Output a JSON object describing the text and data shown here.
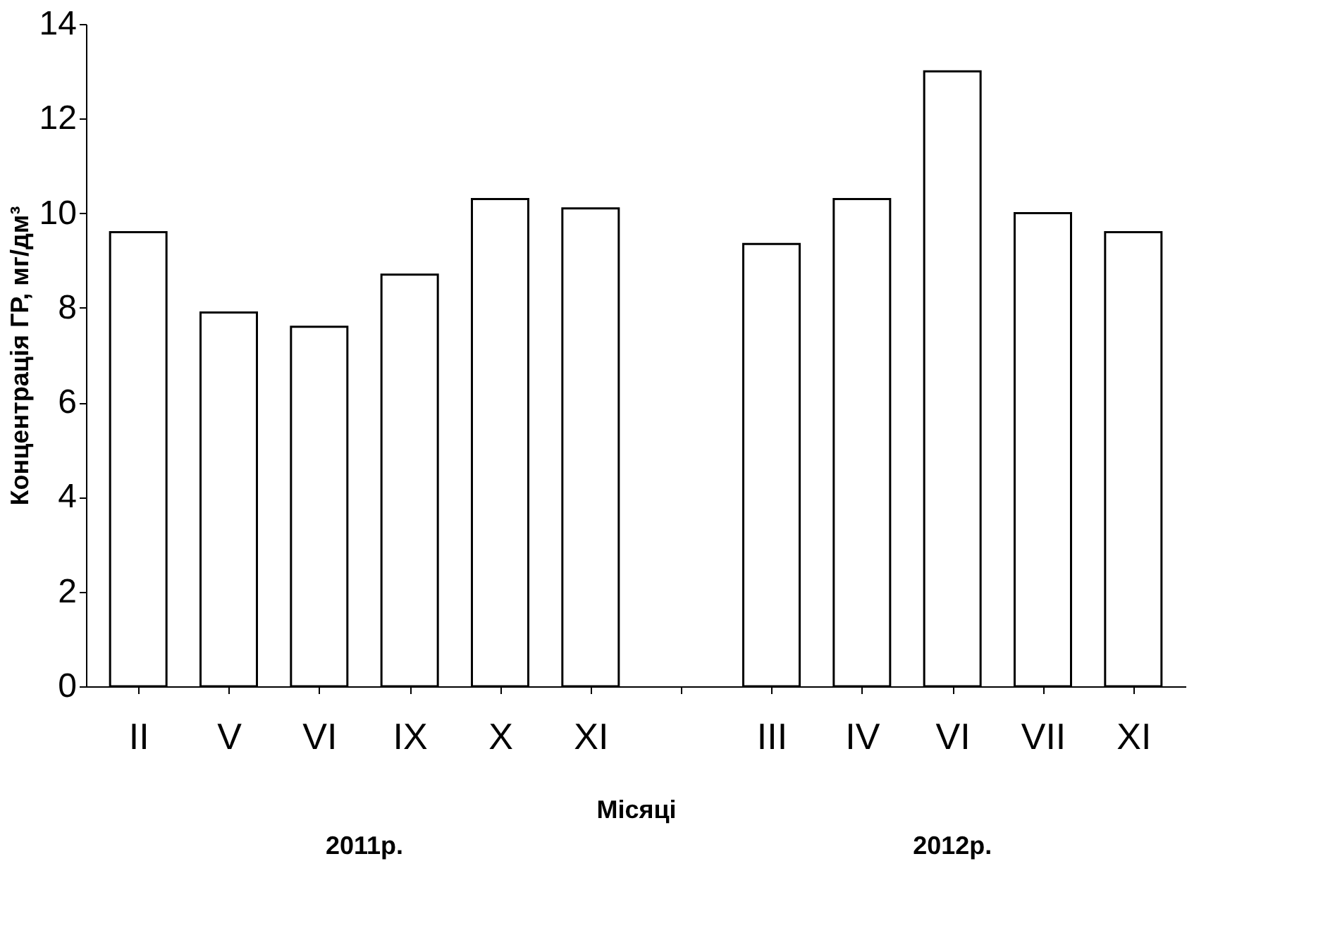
{
  "chart_data": {
    "type": "bar",
    "xlabel": "Місяці",
    "ylabel": "Концентрація ГР, мг/дм³",
    "categories": [
      "II",
      "V",
      "VI",
      "IX",
      "X",
      "XI",
      null,
      "III",
      "IV",
      "VI",
      "VII",
      "XI"
    ],
    "values": [
      9.6,
      7.9,
      7.6,
      8.7,
      10.3,
      10.1,
      null,
      9.35,
      10.3,
      13.0,
      10.0,
      9.6
    ],
    "color": "#ffffff",
    "ylim": [
      0,
      14
    ],
    "yticks": [
      0,
      2,
      4,
      6,
      8,
      10,
      12,
      14
    ],
    "grid": false,
    "annotations": [
      "2011р.",
      "2012р."
    ]
  }
}
